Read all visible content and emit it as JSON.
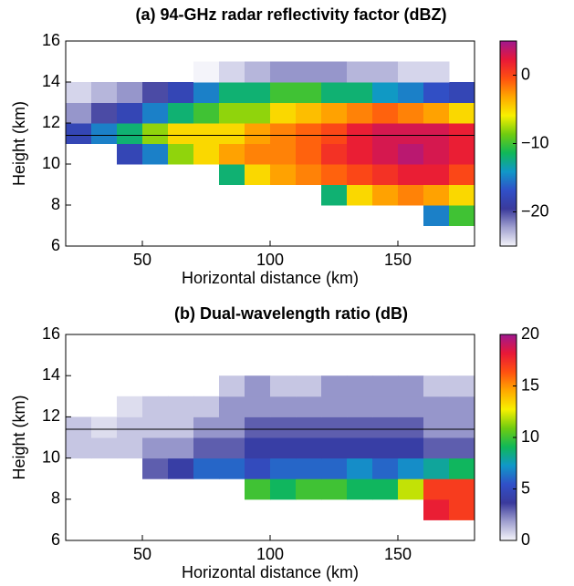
{
  "chart_data": [
    {
      "type": "heatmap",
      "title": "(a) 94-GHz radar reflectivity factor (dBZ)",
      "xlabel": "Horizontal distance (km)",
      "ylabel": "Height (km)",
      "x": [
        25,
        35,
        45,
        55,
        65,
        75,
        85,
        95,
        105,
        115,
        125,
        135,
        145,
        155,
        165,
        175
      ],
      "y": [
        6.5,
        7.5,
        8.5,
        9.5,
        10.5,
        11.5,
        12.5,
        13.5,
        14.5,
        15.5
      ],
      "values": [
        [
          null,
          null,
          null,
          null,
          null,
          null,
          null,
          null,
          null,
          null,
          null,
          null,
          null,
          null,
          null,
          null
        ],
        [
          null,
          null,
          null,
          null,
          null,
          null,
          null,
          null,
          null,
          null,
          null,
          null,
          null,
          null,
          -15,
          -10
        ],
        [
          null,
          null,
          null,
          null,
          null,
          null,
          null,
          null,
          null,
          null,
          -12,
          -5,
          -3,
          -2,
          -3,
          -5
        ],
        [
          null,
          null,
          null,
          null,
          null,
          null,
          -12,
          -5,
          -3,
          -2,
          -1,
          0,
          1,
          2,
          2,
          0
        ],
        [
          null,
          null,
          -18,
          -15,
          -8,
          -5,
          -3,
          -2,
          -2,
          -1,
          1,
          2,
          3,
          4,
          3,
          2
        ],
        [
          -18,
          -15,
          -12,
          -8,
          -5,
          -5,
          -5,
          -3,
          -2,
          -1,
          0,
          2,
          3,
          3,
          3,
          2
        ],
        [
          -22,
          -20,
          -18,
          -15,
          -12,
          -10,
          -8,
          -8,
          -5,
          -4,
          -3,
          -2,
          -1,
          -2,
          -3,
          -5
        ],
        [
          -24,
          -23,
          -22,
          -20,
          -18,
          -15,
          -12,
          -12,
          -10,
          -10,
          -12,
          -12,
          -14,
          -15,
          -17,
          -18
        ],
        [
          null,
          null,
          null,
          null,
          null,
          -25,
          -24,
          -23,
          -22,
          -22,
          -22,
          -23,
          -23,
          -24,
          -24,
          null
        ],
        [
          null,
          null,
          null,
          null,
          null,
          null,
          null,
          null,
          null,
          null,
          null,
          null,
          null,
          null,
          null,
          null
        ]
      ],
      "xlim": [
        20,
        180
      ],
      "ylim": [
        6,
        16
      ],
      "xticks": [
        50,
        100,
        150
      ],
      "yticks": [
        6,
        8,
        10,
        12,
        14,
        16
      ],
      "hline": 11.4,
      "clim": [
        -25,
        5
      ],
      "cticks": [
        {
          "value": -20,
          "label": "−20"
        },
        {
          "value": -10,
          "label": "−10"
        },
        0
      ],
      "colormap": [
        "#f4f4fa",
        "#a0a0d0",
        "#3a3a9c",
        "#3050c8",
        "#1098c8",
        "#10b858",
        "#70cc10",
        "#f8f000",
        "#ffa800",
        "#ff5010",
        "#e81838",
        "#a01890"
      ]
    },
    {
      "type": "heatmap",
      "title": "(b) Dual-wavelength ratio (dB)",
      "xlabel": "Horizontal distance (km)",
      "ylabel": "Height (km)",
      "x": [
        25,
        35,
        45,
        55,
        65,
        75,
        85,
        95,
        105,
        115,
        125,
        135,
        145,
        155,
        165,
        175
      ],
      "y": [
        6.5,
        7.5,
        8.5,
        9.5,
        10.5,
        11.5,
        12.5,
        13.5,
        14.5,
        15.5
      ],
      "values": [
        [
          null,
          null,
          null,
          null,
          null,
          null,
          null,
          null,
          null,
          null,
          null,
          null,
          null,
          null,
          null,
          null
        ],
        [
          null,
          null,
          null,
          null,
          null,
          null,
          null,
          null,
          null,
          null,
          null,
          null,
          null,
          null,
          18,
          17
        ],
        [
          null,
          null,
          null,
          null,
          null,
          null,
          null,
          10,
          9,
          10,
          10,
          9,
          9,
          12,
          17,
          17
        ],
        [
          null,
          null,
          null,
          3,
          4,
          6,
          6,
          5,
          6,
          6,
          6,
          7,
          6,
          7,
          8,
          9
        ],
        [
          1,
          1,
          1,
          2,
          2,
          3,
          3,
          4,
          4,
          4,
          4,
          4,
          4,
          4,
          3,
          3
        ],
        [
          1,
          0.5,
          1,
          1,
          1,
          2,
          2,
          3,
          3,
          3,
          3,
          3,
          3,
          3,
          2,
          2
        ],
        [
          null,
          null,
          0.5,
          1,
          1,
          1,
          2,
          2,
          2,
          2,
          2,
          2,
          2,
          2,
          2,
          2
        ],
        [
          null,
          null,
          null,
          null,
          null,
          null,
          1,
          2,
          1,
          1,
          2,
          2,
          2,
          2,
          1,
          1
        ],
        [
          null,
          null,
          null,
          null,
          null,
          null,
          null,
          null,
          null,
          null,
          null,
          null,
          null,
          null,
          null,
          null
        ],
        [
          null,
          null,
          null,
          null,
          null,
          null,
          null,
          null,
          null,
          null,
          null,
          null,
          null,
          null,
          null,
          null
        ]
      ],
      "xlim": [
        20,
        180
      ],
      "ylim": [
        6,
        16
      ],
      "xticks": [
        50,
        100,
        150
      ],
      "yticks": [
        6,
        8,
        10,
        12,
        14,
        16
      ],
      "hline": 11.4,
      "clim": [
        0,
        20
      ],
      "cticks": [
        0,
        5,
        10,
        15,
        20
      ],
      "colormap": [
        "#f4f4fa",
        "#a0a0d0",
        "#3a3a9c",
        "#3050c8",
        "#1098c8",
        "#10b858",
        "#70cc10",
        "#f8f000",
        "#ffa800",
        "#ff5010",
        "#e81838",
        "#a01890"
      ]
    }
  ]
}
